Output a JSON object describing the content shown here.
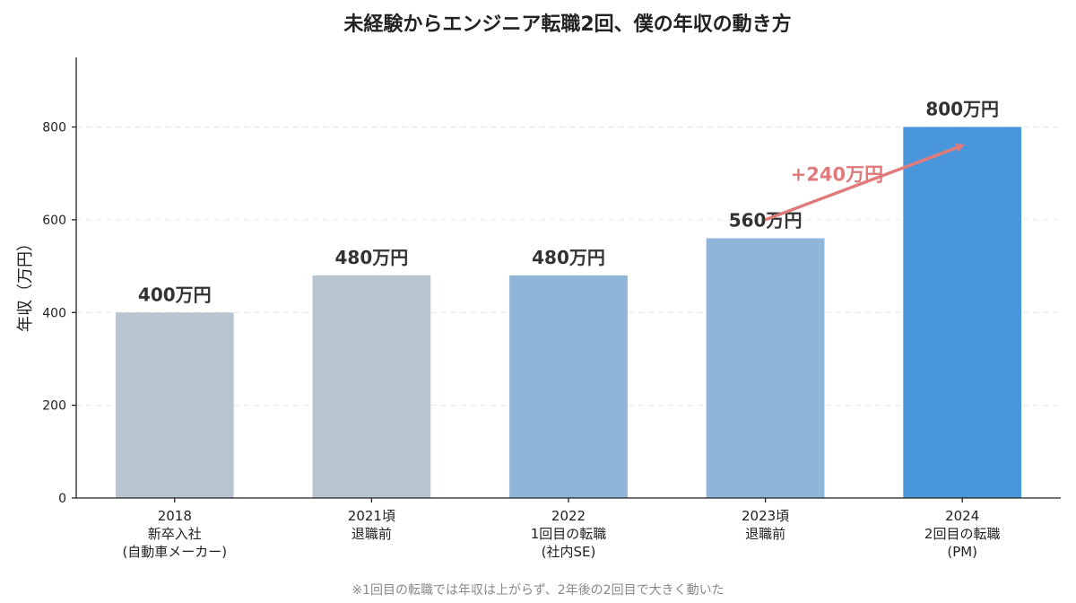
{
  "colors": {
    "bar_gray": "#b8c4d0",
    "bar_light_blue": "#8fb5d8",
    "bar_blue": "#4a96db",
    "annotation": "#e07b7b"
  },
  "chart_data": {
    "type": "bar",
    "title": "未経験からエンジニア転職2回、僕の年収の動き方",
    "ylabel": "年収（万円）",
    "xlabel": "",
    "ylim": [
      0,
      950
    ],
    "yticks": [
      0,
      200,
      400,
      600,
      800
    ],
    "grid": true,
    "categories": [
      [
        "2018",
        "新卒入社",
        "(自動車メーカー)"
      ],
      [
        "2021頃",
        "退職前"
      ],
      [
        "2022",
        "1回目の転職",
        "(社内SE)"
      ],
      [
        "2023頃",
        "退職前"
      ],
      [
        "2024",
        "2回目の転職",
        "(PM)"
      ]
    ],
    "values": [
      400,
      480,
      480,
      560,
      800
    ],
    "value_labels": [
      "400万円",
      "480万円",
      "480万円",
      "560万円",
      "800万円"
    ],
    "bar_colors": [
      "#b8c4d0",
      "#b8c4d0",
      "#8fb5d8",
      "#8fb5d8",
      "#4a96db"
    ],
    "annotation": {
      "text": "+240万円",
      "from": {
        "category_index": 3,
        "value": 600
      },
      "to": {
        "category_index": 4,
        "value": 760
      }
    },
    "footnote": "※1回目の転職では年収は上がらず、2年後の2回目で大きく動いた"
  }
}
